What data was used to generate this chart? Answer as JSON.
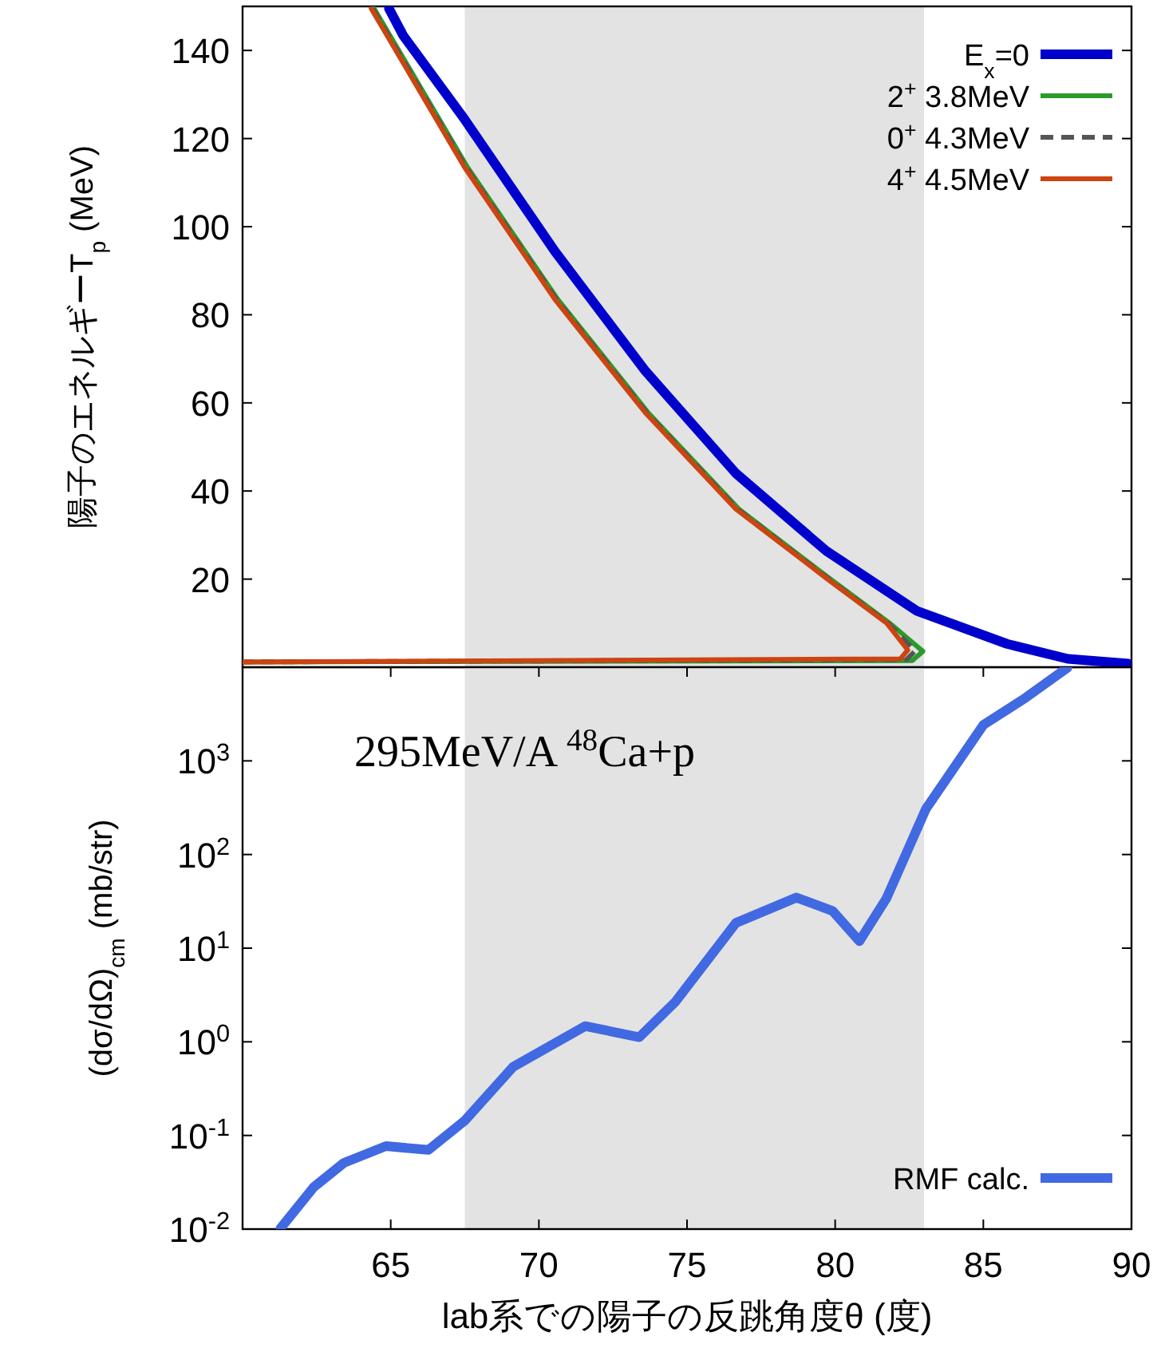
{
  "chart_data": [
    {
      "type": "line",
      "ylabel": "陽子のエネルギーT$_{p}$ (MeV)",
      "xlim": [
        60,
        90
      ],
      "ylim": [
        0,
        150
      ],
      "yticks": [
        20,
        40,
        60,
        80,
        100,
        120,
        140
      ],
      "tick_labels": "y",
      "legend": "top right",
      "bands": [
        {
          "axis": "x",
          "from": 67.5,
          "to": 83,
          "color": "#e3e3e3"
        }
      ],
      "series": [
        {
          "name": "E$_{x}$=0",
          "color": "#0000cc",
          "x": [
            64.94,
            65.42,
            67.49,
            70.54,
            73.6,
            76.65,
            79.7,
            82.75,
            85.8,
            87.85,
            89.9
          ],
          "values": [
            149.5,
            143.4,
            124.4,
            94.4,
            67.2,
            44.0,
            26.4,
            12.8,
            5.3,
            1.9,
            0.8
          ]
        },
        {
          "name": "2$^{+}$ 3.8MeV",
          "color": "#2a9a2a",
          "x": [
            64.44,
            67.59,
            70.64,
            73.7,
            76.75,
            79.8,
            81.84,
            82.96,
            82.6,
            60.0
          ],
          "values": [
            149.5,
            113.5,
            83.5,
            57.7,
            35.9,
            20.2,
            10.0,
            3.6,
            1.5,
            1.2
          ]
        },
        {
          "name": "0$^{+}$ 4.3MeV",
          "color": "#555555",
          "line_style": "dashed",
          "x": [
            64.39,
            67.54,
            70.59,
            73.65,
            76.7,
            79.75,
            81.79,
            82.7,
            82.4,
            60.0
          ],
          "values": [
            149.5,
            113.5,
            83.5,
            57.7,
            35.9,
            20.2,
            10.0,
            3.7,
            1.7,
            1.2
          ]
        },
        {
          "name": "4$^{+}$ 4.5MeV",
          "color": "#cc4411",
          "x": [
            64.34,
            67.49,
            70.54,
            73.6,
            76.65,
            79.7,
            81.74,
            82.45,
            82.2,
            60.0
          ],
          "values": [
            149.5,
            113.5,
            83.5,
            57.7,
            35.9,
            20.2,
            10.0,
            3.9,
            1.9,
            1.2
          ]
        }
      ]
    },
    {
      "type": "line",
      "ylabel": "(dσ/dΩ)$_{cm}$ (mb/str)",
      "xlabel": "lab系での陽子の反跳角度θ (度)",
      "log": "y",
      "xlim": [
        60,
        90
      ],
      "ylim": [
        0.01,
        10000
      ],
      "xticks": [
        65,
        70,
        75,
        80,
        85,
        90
      ],
      "yticks": [
        {
          "value": 0.01,
          "label": "10$^{-2}$"
        },
        {
          "value": 0.1,
          "label": "10$^{-1}$"
        },
        {
          "value": 1,
          "label": "10$^{0}$"
        },
        {
          "value": 10,
          "label": "10$^{1}$"
        },
        {
          "value": 100,
          "label": "10$^{2}$"
        },
        {
          "value": 1000,
          "label": "10$^{3}$"
        }
      ],
      "legend": "bottom right",
      "annotations": [
        "295MeV/A $^{48}$Ca+p"
      ],
      "bands": [
        {
          "axis": "x",
          "from": 67.5,
          "to": 83,
          "color": "#e3e3e3"
        }
      ],
      "series": [
        {
          "name": "RMF calc.",
          "color": "#4169e1",
          "x": [
            61.28,
            62.4,
            63.42,
            64.84,
            66.27,
            67.49,
            69.13,
            71.56,
            73.39,
            74.62,
            76.65,
            78.69,
            79.91,
            80.82,
            81.73,
            83.06,
            85.0,
            86.42,
            87.84
          ],
          "values": [
            0.0102,
            0.028,
            0.051,
            0.077,
            0.07,
            0.143,
            0.54,
            1.47,
            1.12,
            2.7,
            18.6,
            34.7,
            25,
            11.9,
            34,
            306,
            2420,
            4700,
            9900
          ]
        }
      ]
    }
  ]
}
